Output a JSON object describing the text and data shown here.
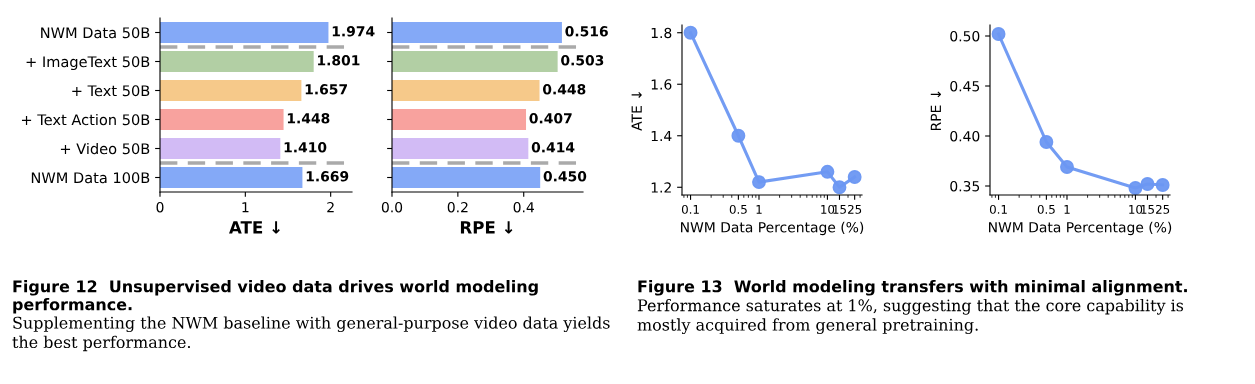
{
  "chart_data": [
    {
      "type": "bar",
      "orientation": "horizontal",
      "xlabel": "ATE ↓",
      "categories": [
        "NWM Data 50B",
        "+ ImageText 50B",
        "+ Text 50B",
        "+ Text Action 50B",
        "+ Video 50B",
        "NWM Data 100B"
      ],
      "values": [
        1.974,
        1.801,
        1.657,
        1.448,
        1.41,
        1.669
      ],
      "value_labels": [
        "1.974",
        "1.801",
        "1.657",
        "1.448",
        "1.410",
        "1.669"
      ],
      "colors": [
        "#84a9f7",
        "#b2cfa4",
        "#f6c98a",
        "#f8a29e",
        "#d2bbf5",
        "#84a9f7"
      ],
      "xlim": [
        0,
        2.25
      ],
      "xticks": [
        0,
        1,
        2
      ],
      "annotations": [
        "Figure 12  Unsupervised video data drives world modeling performance.",
        "Supplementing the NWM baseline with general-purpose video data yields the best performance."
      ]
    },
    {
      "type": "bar",
      "orientation": "horizontal",
      "xlabel": "RPE ↓",
      "categories": [
        null,
        null,
        null,
        null,
        null,
        null
      ],
      "values": [
        0.516,
        0.503,
        0.448,
        0.407,
        0.414,
        0.45
      ],
      "value_labels": [
        "0.516",
        "0.503",
        "0.448",
        "0.407",
        "0.414",
        "0.450"
      ],
      "colors": [
        "#84a9f7",
        "#b2cfa4",
        "#f6c98a",
        "#f8a29e",
        "#d2bbf5",
        "#84a9f7"
      ],
      "xlim": [
        0,
        0.58
      ],
      "xticks": [
        {
          "value": 0,
          "label": "0.0"
        },
        {
          "value": 0.2,
          "label": "0.2"
        },
        {
          "value": 0.4,
          "label": "0.4"
        }
      ]
    },
    {
      "type": "line",
      "xlabel": "NWM Data Percentage (%)",
      "ylabel": "ATE ↓",
      "log": "x",
      "marker": "circle",
      "line_style": "solid",
      "x": [
        0.1,
        0.5,
        1,
        10,
        15,
        25
      ],
      "series": [
        {
          "color": "#6b97f2",
          "values": [
            1.8,
            1.4,
            1.22,
            1.26,
            1.2,
            1.24
          ]
        }
      ],
      "xlim": [
        0.075,
        32
      ],
      "xticks": [
        0.1,
        0.5,
        1,
        10,
        15,
        25
      ],
      "ylim": [
        1.17,
        1.83
      ],
      "yticks": [
        {
          "value": 1.2,
          "label": "1.2"
        },
        {
          "value": 1.4,
          "label": "1.4"
        },
        {
          "value": 1.6,
          "label": "1.6"
        },
        {
          "value": 1.8,
          "label": "1.8"
        }
      ],
      "annotations": [
        "Figure 13  World modeling transfers with minimal alignment.",
        "Performance saturates at 1%, suggesting that the core capability is mostly acquired from general pretraining."
      ]
    },
    {
      "type": "line",
      "xlabel": "NWM Data Percentage (%)",
      "ylabel": "RPE ↓",
      "log": "x",
      "marker": "circle",
      "line_style": "solid",
      "x": [
        0.1,
        0.5,
        1,
        10,
        15,
        25
      ],
      "series": [
        {
          "color": "#6b97f2",
          "values": [
            0.502,
            0.394,
            0.369,
            0.348,
            0.352,
            0.351
          ]
        }
      ],
      "xlim": [
        0.075,
        32
      ],
      "xticks": [
        0.1,
        0.5,
        1,
        10,
        15,
        25
      ],
      "ylim": [
        0.341,
        0.511
      ],
      "yticks": [
        {
          "value": 0.35,
          "label": "0.35"
        },
        {
          "value": 0.4,
          "label": "0.40"
        },
        {
          "value": 0.45,
          "label": "0.45"
        },
        {
          "value": 0.5,
          "label": "0.50"
        }
      ]
    }
  ]
}
